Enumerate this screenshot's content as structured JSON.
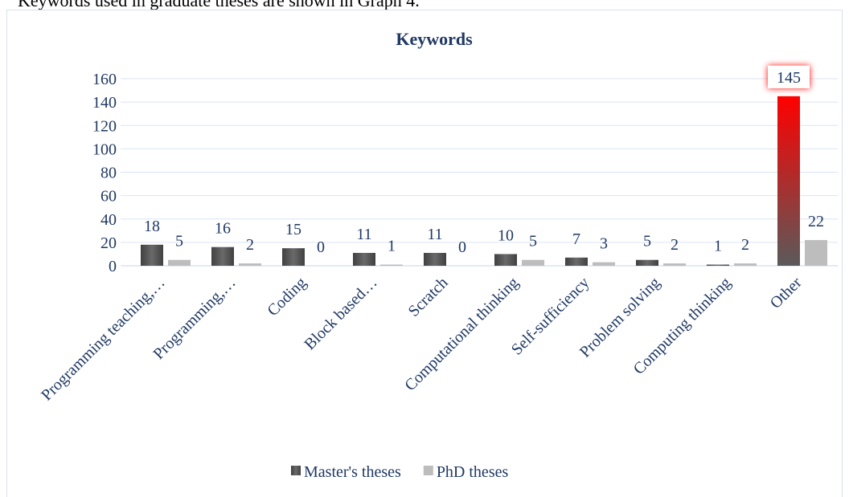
{
  "document_text": "Keywords used in graduate theses are shown in Graph 4.",
  "chart_data": {
    "type": "bar",
    "title": "Keywords",
    "categories": [
      "Programming teaching,…",
      "Programming,…",
      "Coding",
      "Block based…",
      "Scratch",
      "Computational thinking",
      "Self-sufficiency",
      "Problem solving",
      "Computing thinking",
      "Other"
    ],
    "series": [
      {
        "name": "Master's theses",
        "color": "#5a5a5a",
        "values": [
          18,
          16,
          15,
          11,
          11,
          10,
          7,
          5,
          1,
          145
        ]
      },
      {
        "name": "PhD theses",
        "color": "#bdbdbd",
        "values": [
          5,
          2,
          0,
          1,
          0,
          5,
          3,
          2,
          2,
          22
        ]
      }
    ],
    "highlight": {
      "series": 0,
      "index": 9,
      "color": "#ff0000"
    },
    "ylim": [
      0,
      160
    ],
    "yticks": [
      0,
      20,
      40,
      60,
      80,
      100,
      120,
      140,
      160
    ],
    "grid": true,
    "legend": "bottom"
  }
}
